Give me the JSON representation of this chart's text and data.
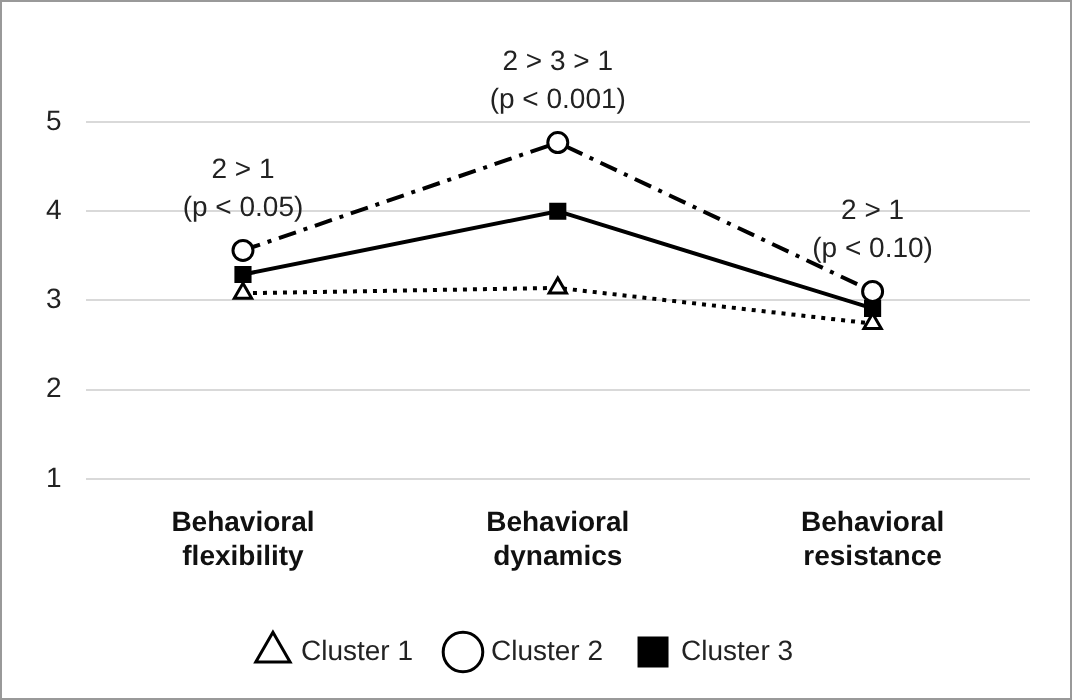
{
  "chart_data": {
    "type": "line",
    "categories": [
      "Behavioral flexibility",
      "Behavioral dynamics",
      "Behavioral resistance"
    ],
    "series": [
      {
        "name": "Cluster 1",
        "color": "#000000",
        "values": [
          3.08,
          3.14,
          2.74
        ],
        "marker": "triangle",
        "line_style": "dotted"
      },
      {
        "name": "Cluster 2",
        "color": "#000000",
        "values": [
          3.56,
          4.77,
          3.1
        ],
        "marker": "circle",
        "line_style": "dashed"
      },
      {
        "name": "Cluster 3",
        "color": "#000000",
        "values": [
          3.29,
          4.0,
          2.91
        ],
        "marker": "square",
        "line_style": "solid"
      }
    ],
    "ylim": [
      1,
      5
    ],
    "yticks": [
      1,
      2,
      3,
      4,
      5
    ],
    "grid": "y",
    "legend": "bottom",
    "annotations": [
      "2 > 1\n(p < 0.05)",
      "2 > 3 > 1\n(p < 0.001)",
      "2 > 1\n(p < 0.10)"
    ]
  }
}
